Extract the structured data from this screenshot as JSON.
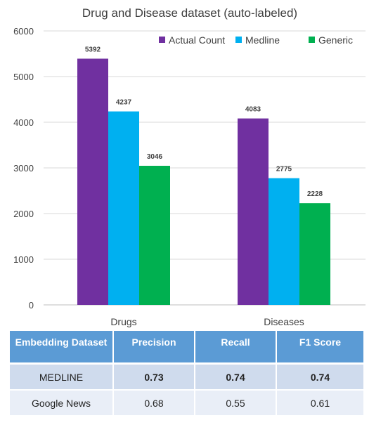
{
  "chart_data": {
    "type": "bar",
    "title": "Drug and Disease dataset (auto-labeled)",
    "categories": [
      "Drugs",
      "Diseases"
    ],
    "series": [
      {
        "name": "Actual Count",
        "values": [
          5392,
          4083
        ],
        "color": "#7030a0"
      },
      {
        "name": "Medline",
        "values": [
          4237,
          2775
        ],
        "color": "#00b0f0"
      },
      {
        "name": "Generic",
        "values": [
          3046,
          2228
        ],
        "color": "#00b050"
      }
    ],
    "ylim": [
      0,
      6000
    ],
    "yticks": [
      0,
      1000,
      2000,
      3000,
      4000,
      5000,
      6000
    ],
    "grid": true,
    "legend_position": "top-right",
    "data_labels": true
  },
  "table": {
    "headers": [
      "Embedding Dataset",
      "Precision",
      "Recall",
      "F1 Score"
    ],
    "rows": [
      {
        "cells": [
          "MEDLINE",
          "0.73",
          "0.74",
          "0.74"
        ],
        "bold_values": true
      },
      {
        "cells": [
          "Google News",
          "0.68",
          "0.55",
          "0.61"
        ],
        "bold_values": false
      }
    ]
  }
}
